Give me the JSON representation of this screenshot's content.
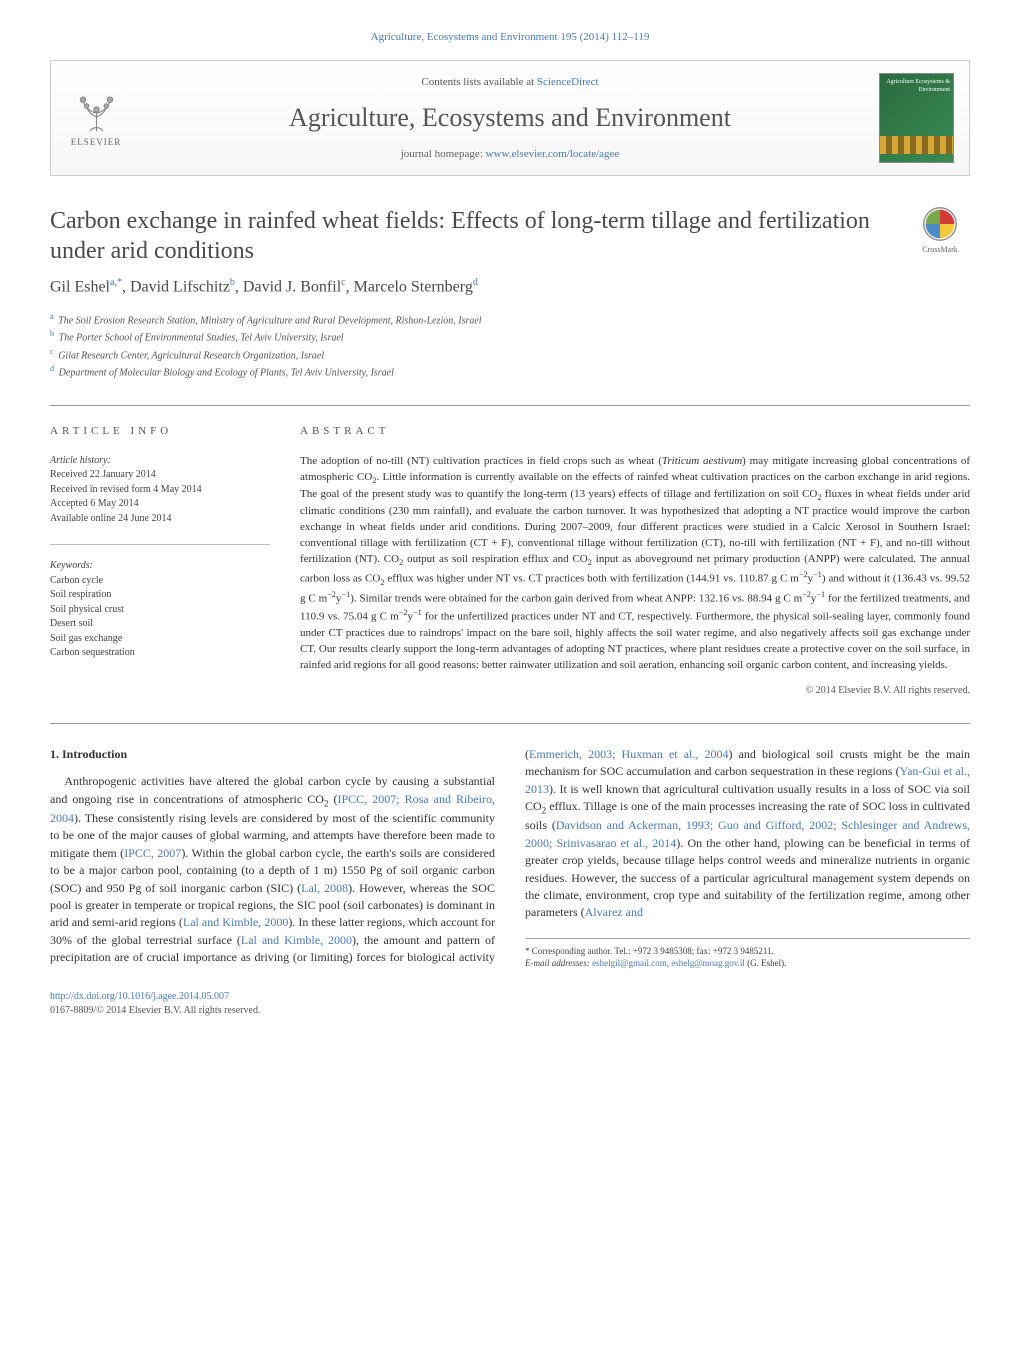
{
  "journal_header_citation": "Agriculture, Ecosystems and Environment 195 (2014) 112–119",
  "header_box": {
    "contents_prefix": "Contents lists available at ",
    "contents_link": "ScienceDirect",
    "journal_title": "Agriculture, Ecosystems and Environment",
    "homepage_prefix": "journal homepage: ",
    "homepage_link": "www.elsevier.com/locate/agee",
    "elsevier_label": "ELSEVIER",
    "cover_title": "Agriculture Ecosystems & Environment"
  },
  "crossmark_label": "CrossMark",
  "article_title": "Carbon exchange in rainfed wheat fields: Effects of long-term tillage and fertilization under arid conditions",
  "authors_html": "Gil Eshel<sup>a,*</sup>, David Lifschitz<sup>b</sup>, David J. Bonfil<sup>c</sup>, Marcelo Sternberg<sup>d</sup>",
  "affiliations": [
    {
      "key": "a",
      "text": "The Soil Erosion Research Station, Ministry of Agriculture and Rural Development, Rishon-Lezion, Israel"
    },
    {
      "key": "b",
      "text": "The Porter School of Environmental Studies, Tel Aviv University, Israel"
    },
    {
      "key": "c",
      "text": "Gilat Research Center, Agricultural Research Organization, Israel"
    },
    {
      "key": "d",
      "text": "Department of Molecular Biology and Ecology of Plants, Tel Aviv University, Israel"
    }
  ],
  "article_info_label": "ARTICLE INFO",
  "abstract_label": "ABSTRACT",
  "history": {
    "heading": "Article history:",
    "received": "Received 22 January 2014",
    "revised": "Received in revised form 4 May 2014",
    "accepted": "Accepted 6 May 2014",
    "online": "Available online 24 June 2014"
  },
  "keywords": {
    "heading": "Keywords:",
    "items": [
      "Carbon cycle",
      "Soil respiration",
      "Soil physical crust",
      "Desert soil",
      "Soil gas exchange",
      "Carbon sequestration"
    ]
  },
  "abstract_text": "The adoption of no-till (NT) cultivation practices in field crops such as wheat (Triticum aestivum) may mitigate increasing global concentrations of atmospheric CO2. Little information is currently available on the effects of rainfed wheat cultivation practices on the carbon exchange in arid regions. The goal of the present study was to quantify the long-term (13 years) effects of tillage and fertilization on soil CO2 fluxes in wheat fields under arid climatic conditions (230 mm rainfall), and evaluate the carbon turnover. It was hypothesized that adopting a NT practice would improve the carbon exchange in wheat fields under arid conditions. During 2007–2009, four different practices were studied in a Calcic Xerosol in Southern Israel: conventional tillage with fertilization (CT + F), conventional tillage without fertilization (CT), no-till with fertilization (NT + F), and no-till without fertilization (NT). CO2 output as soil respiration efflux and CO2 input as aboveground net primary production (ANPP) were calculated. The annual carbon loss as CO2 efflux was higher under NT vs. CT practices both with fertilization (144.91 vs. 110.87 g C m−2y−1) and without it (136.43 vs. 99.52 g C m−2y−1). Similar trends were obtained for the carbon gain derived from wheat ANPP: 132.16 vs. 88.94 g C m−2y−1 for the fertilized treatments, and 110.9 vs. 75.04 g C m−2y−1 for the unfertilized practices under NT and CT, respectively. Furthermore, the physical soil-sealing layer, commonly found under CT practices due to raindrops' impact on the bare soil, highly affects the soil water regime, and also negatively affects soil gas exchange under CT. Our results clearly support the long-term advantages of adopting NT practices, where plant residues create a protective cover on the soil surface, in rainfed arid regions for all good reasons: better rainwater utilization and soil aeration, enhancing soil organic carbon content, and increasing yields.",
  "abstract_copyright": "© 2014 Elsevier B.V. All rights reserved.",
  "body": {
    "heading": "1.  Introduction",
    "paragraph": "Anthropogenic activities have altered the global carbon cycle by causing a substantial and ongoing rise in concentrations of atmospheric CO2 (IPCC, 2007; Rosa and Ribeiro, 2004). These consistently rising levels are considered by most of the scientific community to be one of the major causes of global warming, and attempts have therefore been made to mitigate them (IPCC, 2007). Within the global carbon cycle, the earth's soils are considered to be a major carbon pool, containing (to a depth of 1 m) 1550 Pg of soil organic carbon (SOC) and 950 Pg of soil inorganic carbon (SIC) (Lal, 2008). However, whereas the SOC pool is greater in temperate or tropical regions, the SIC pool (soil carbonates) is dominant in arid and semi-arid regions (Lal and Kimble, 2000). In these latter regions, which account for 30% of the global terrestrial surface (Lal and Kimble, 2000), the amount and pattern of precipitation are of crucial importance as driving (or limiting) forces for biological activity (Emmerich, 2003; Huxman et al., 2004) and biological soil crusts might be the main mechanism for SOC accumulation and carbon sequestration in these regions (Yan-Gui et al., 2013). It is well known that agricultural cultivation usually results in a loss of SOC via soil CO2 efflux. Tillage is one of the main processes increasing the rate of SOC loss in cultivated soils (Davidson and Ackerman, 1993; Guo and Gifford, 2002; Schlesinger and Andrews, 2000; Srinivasarao et al., 2014). On the other hand, plowing can be beneficial in terms of greater crop yields, because tillage helps control weeds and mineralize nutrients in organic residues. However, the success of a particular agricultural management system depends on the climate, environment, crop type and suitability of the fertilization regime, among other parameters (Alvarez and"
  },
  "footnote": {
    "corr": "* Corresponding author. Tel.: +972 3 9485308; fax: +972 3 9485211.",
    "email_label": "E-mail addresses:",
    "email1": "eshelgil@gmail.com",
    "email_sep": ", ",
    "email2": "eshelg@moag.gov.il",
    "email_suffix": " (G. Eshel)."
  },
  "doi": {
    "link": "http://dx.doi.org/10.1016/j.agee.2014.05.007",
    "issn_line": "0167-8809/© 2014 Elsevier B.V. All rights reserved."
  },
  "colors": {
    "link": "#4a7ab0",
    "text": "#333333",
    "heading_gray": "#4a4a4a",
    "rule": "#999999"
  }
}
